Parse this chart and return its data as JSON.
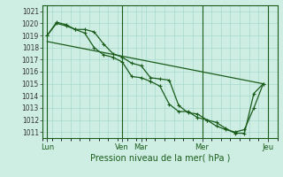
{
  "title": "Pression niveau de la mer( hPa )",
  "bg_color": "#ceeee4",
  "grid_color": "#a8d8cc",
  "line_color": "#1a5c1a",
  "ylim": [
    1010.5,
    1021.5
  ],
  "yticks": [
    1011,
    1012,
    1013,
    1014,
    1015,
    1016,
    1017,
    1018,
    1019,
    1020,
    1021
  ],
  "xlim": [
    0,
    25
  ],
  "xtick_labels": [
    "Lun",
    "Ven",
    "Mar",
    "Mer",
    "Jeu"
  ],
  "xtick_positions": [
    0.5,
    8.5,
    10.5,
    17.0,
    24.0
  ],
  "vline_positions": [
    0.5,
    8.5,
    17.0,
    24.0
  ],
  "line1_x": [
    0.5,
    1.5,
    2.5,
    3.5,
    4.5,
    5.5,
    6.5,
    7.5,
    8.5,
    9.5,
    10.5,
    11.5,
    12.5,
    13.5,
    14.5,
    15.5,
    16.5,
    17.5,
    18.5,
    19.5,
    20.5,
    21.5,
    22.5,
    23.5
  ],
  "line1_y": [
    1019.0,
    1020.1,
    1019.9,
    1019.5,
    1019.5,
    1019.3,
    1018.3,
    1017.5,
    1017.2,
    1016.7,
    1016.5,
    1015.5,
    1015.4,
    1015.3,
    1013.2,
    1012.6,
    1012.5,
    1012.0,
    1011.8,
    1011.3,
    1010.9,
    1010.9,
    1014.2,
    1015.0
  ],
  "line2_x": [
    0.5,
    1.5,
    2.5,
    3.5,
    4.5,
    5.5,
    6.5,
    7.5,
    8.5,
    9.5,
    10.5,
    11.5,
    12.5,
    13.5,
    14.5,
    15.5,
    16.5,
    17.5,
    18.5,
    19.5,
    20.5,
    21.5,
    22.5,
    23.5
  ],
  "line2_y": [
    1019.0,
    1020.0,
    1019.8,
    1019.5,
    1019.2,
    1018.0,
    1017.4,
    1017.2,
    1016.8,
    1015.6,
    1015.5,
    1015.2,
    1014.8,
    1013.3,
    1012.7,
    1012.7,
    1012.2,
    1012.0,
    1011.5,
    1011.2,
    1011.0,
    1011.2,
    1013.0,
    1015.0
  ],
  "line3_x": [
    0.5,
    23.5
  ],
  "line3_y": [
    1018.5,
    1015.0
  ]
}
